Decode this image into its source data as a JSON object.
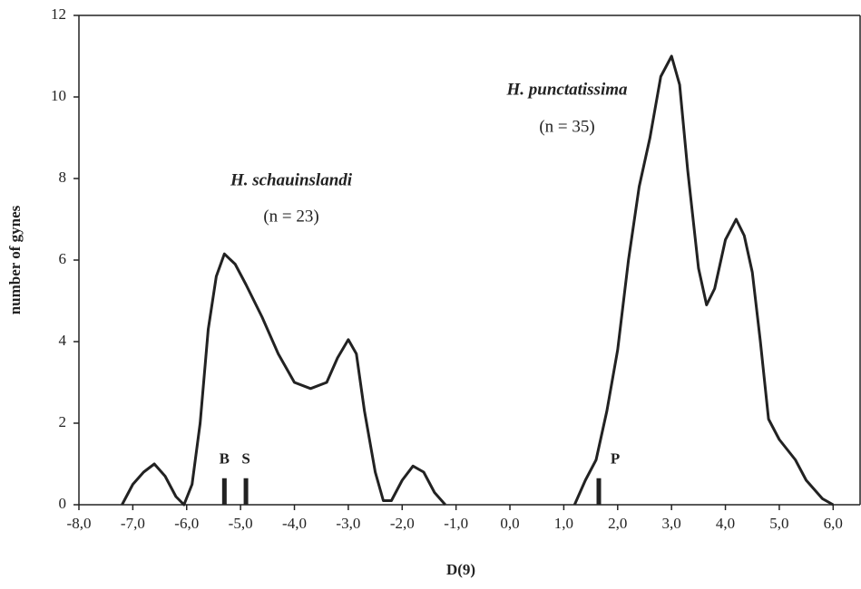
{
  "chart_data": {
    "type": "line",
    "x_label": "D(9)",
    "y_label": "number of gynes",
    "color": "#222222",
    "x": [
      -7.2,
      -7.0,
      -6.8,
      -6.6,
      -6.4,
      -6.2,
      -6.05,
      -5.9,
      -5.75,
      -5.6,
      -5.45,
      -5.3,
      -5.1,
      -4.9,
      -4.6,
      -4.3,
      -4.0,
      -3.7,
      -3.4,
      -3.2,
      -3.0,
      -2.85,
      -2.7,
      -2.5,
      -2.35,
      -2.2,
      -2.0,
      -1.8,
      -1.6,
      -1.4,
      -1.2,
      0,
      1.2,
      1.4,
      1.6,
      1.8,
      2.0,
      2.2,
      2.4,
      2.6,
      2.8,
      3.0,
      3.15,
      3.3,
      3.5,
      3.65,
      3.8,
      4.0,
      4.2,
      4.35,
      4.5,
      4.65,
      4.8,
      5.0,
      5.3,
      5.5,
      5.8,
      6.0
    ],
    "values": [
      0,
      0.5,
      0.8,
      1.0,
      0.7,
      0.2,
      0,
      0.5,
      2,
      4.3,
      5.6,
      6.15,
      5.9,
      5.4,
      4.6,
      3.7,
      3.0,
      2.85,
      3.0,
      3.6,
      4.05,
      3.7,
      2.3,
      0.8,
      0.1,
      0.1,
      0.6,
      0.95,
      0.8,
      0.3,
      0,
      null,
      0,
      0.6,
      1.1,
      2.3,
      3.8,
      6.0,
      7.8,
      9.0,
      10.5,
      11.0,
      10.3,
      8.2,
      5.8,
      4.9,
      5.3,
      6.5,
      7.0,
      6.6,
      5.7,
      4.0,
      2.1,
      1.6,
      1.1,
      0.6,
      0.15,
      0
    ],
    "markers": [
      {
        "label": "B",
        "x": -5.3,
        "height": 0.65
      },
      {
        "label": "S",
        "x": -4.9,
        "height": 0.65
      },
      {
        "label": "P",
        "x": 1.65,
        "height": 0.65
      }
    ],
    "annotations": [
      {
        "title": "H. schauinslandi",
        "text": "(n = 23)"
      },
      {
        "title": "H. punctatissima",
        "text": "(n = 35)"
      }
    ],
    "xlim": [
      -8,
      6.5
    ],
    "ylim": [
      0,
      12
    ],
    "xticks": [
      {
        "value": -8,
        "label": "-8,0"
      },
      {
        "value": -7,
        "label": "-7,0"
      },
      {
        "value": -6,
        "label": "-6,0"
      },
      {
        "value": -5,
        "label": "-5,0"
      },
      {
        "value": -4,
        "label": "-4,0"
      },
      {
        "value": -3,
        "label": "-3,0"
      },
      {
        "value": -2,
        "label": "-2,0"
      },
      {
        "value": -1,
        "label": "-1,0"
      },
      {
        "value": 0,
        "label": "0,0"
      },
      {
        "value": 1,
        "label": "1,0"
      },
      {
        "value": 2,
        "label": "2,0"
      },
      {
        "value": 3,
        "label": "3,0"
      },
      {
        "value": 4,
        "label": "4,0"
      },
      {
        "value": 5,
        "label": "5,0"
      },
      {
        "value": 6,
        "label": "6,0"
      }
    ],
    "yticks": [
      0,
      2,
      4,
      6,
      8,
      10,
      12
    ]
  }
}
